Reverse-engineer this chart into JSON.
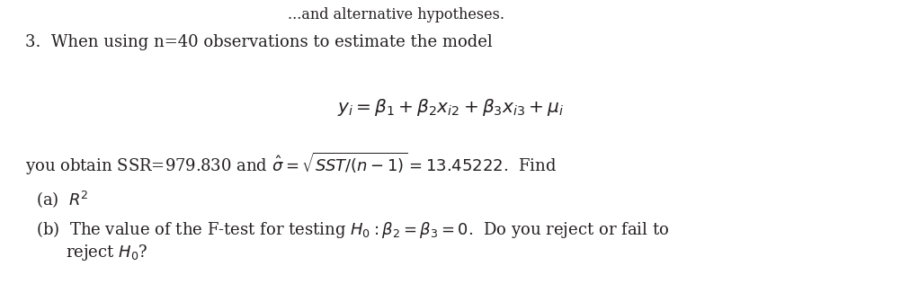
{
  "background_color": "#ffffff",
  "top_fragment": "...and alternative hypotheses.",
  "line1": "3.  When using n=40 observations to estimate the model",
  "equation": "$y_i = \\beta_1 + \\beta_2 x_{i2} + \\beta_3 x_{i3} + \\mu_i$",
  "line3_text": "you obtain SSR=979.830 and $\\hat{\\sigma} = \\sqrt{SST/(n-1)} = 13.45222$.  Find",
  "item_a": "(a)  $R^2$",
  "item_b1": "(b)  The value of the F-test for testing $H_0 : \\beta_2 = \\beta_3 = 0$.  Do you reject or fail to",
  "item_b2": "reject $H_0$?",
  "text_color": "#231f20",
  "font_size_main": 13.0,
  "font_size_eq": 14.5,
  "font_size_top": 11.5,
  "fig_width": 10.03,
  "fig_height": 3.16,
  "dpi": 100
}
